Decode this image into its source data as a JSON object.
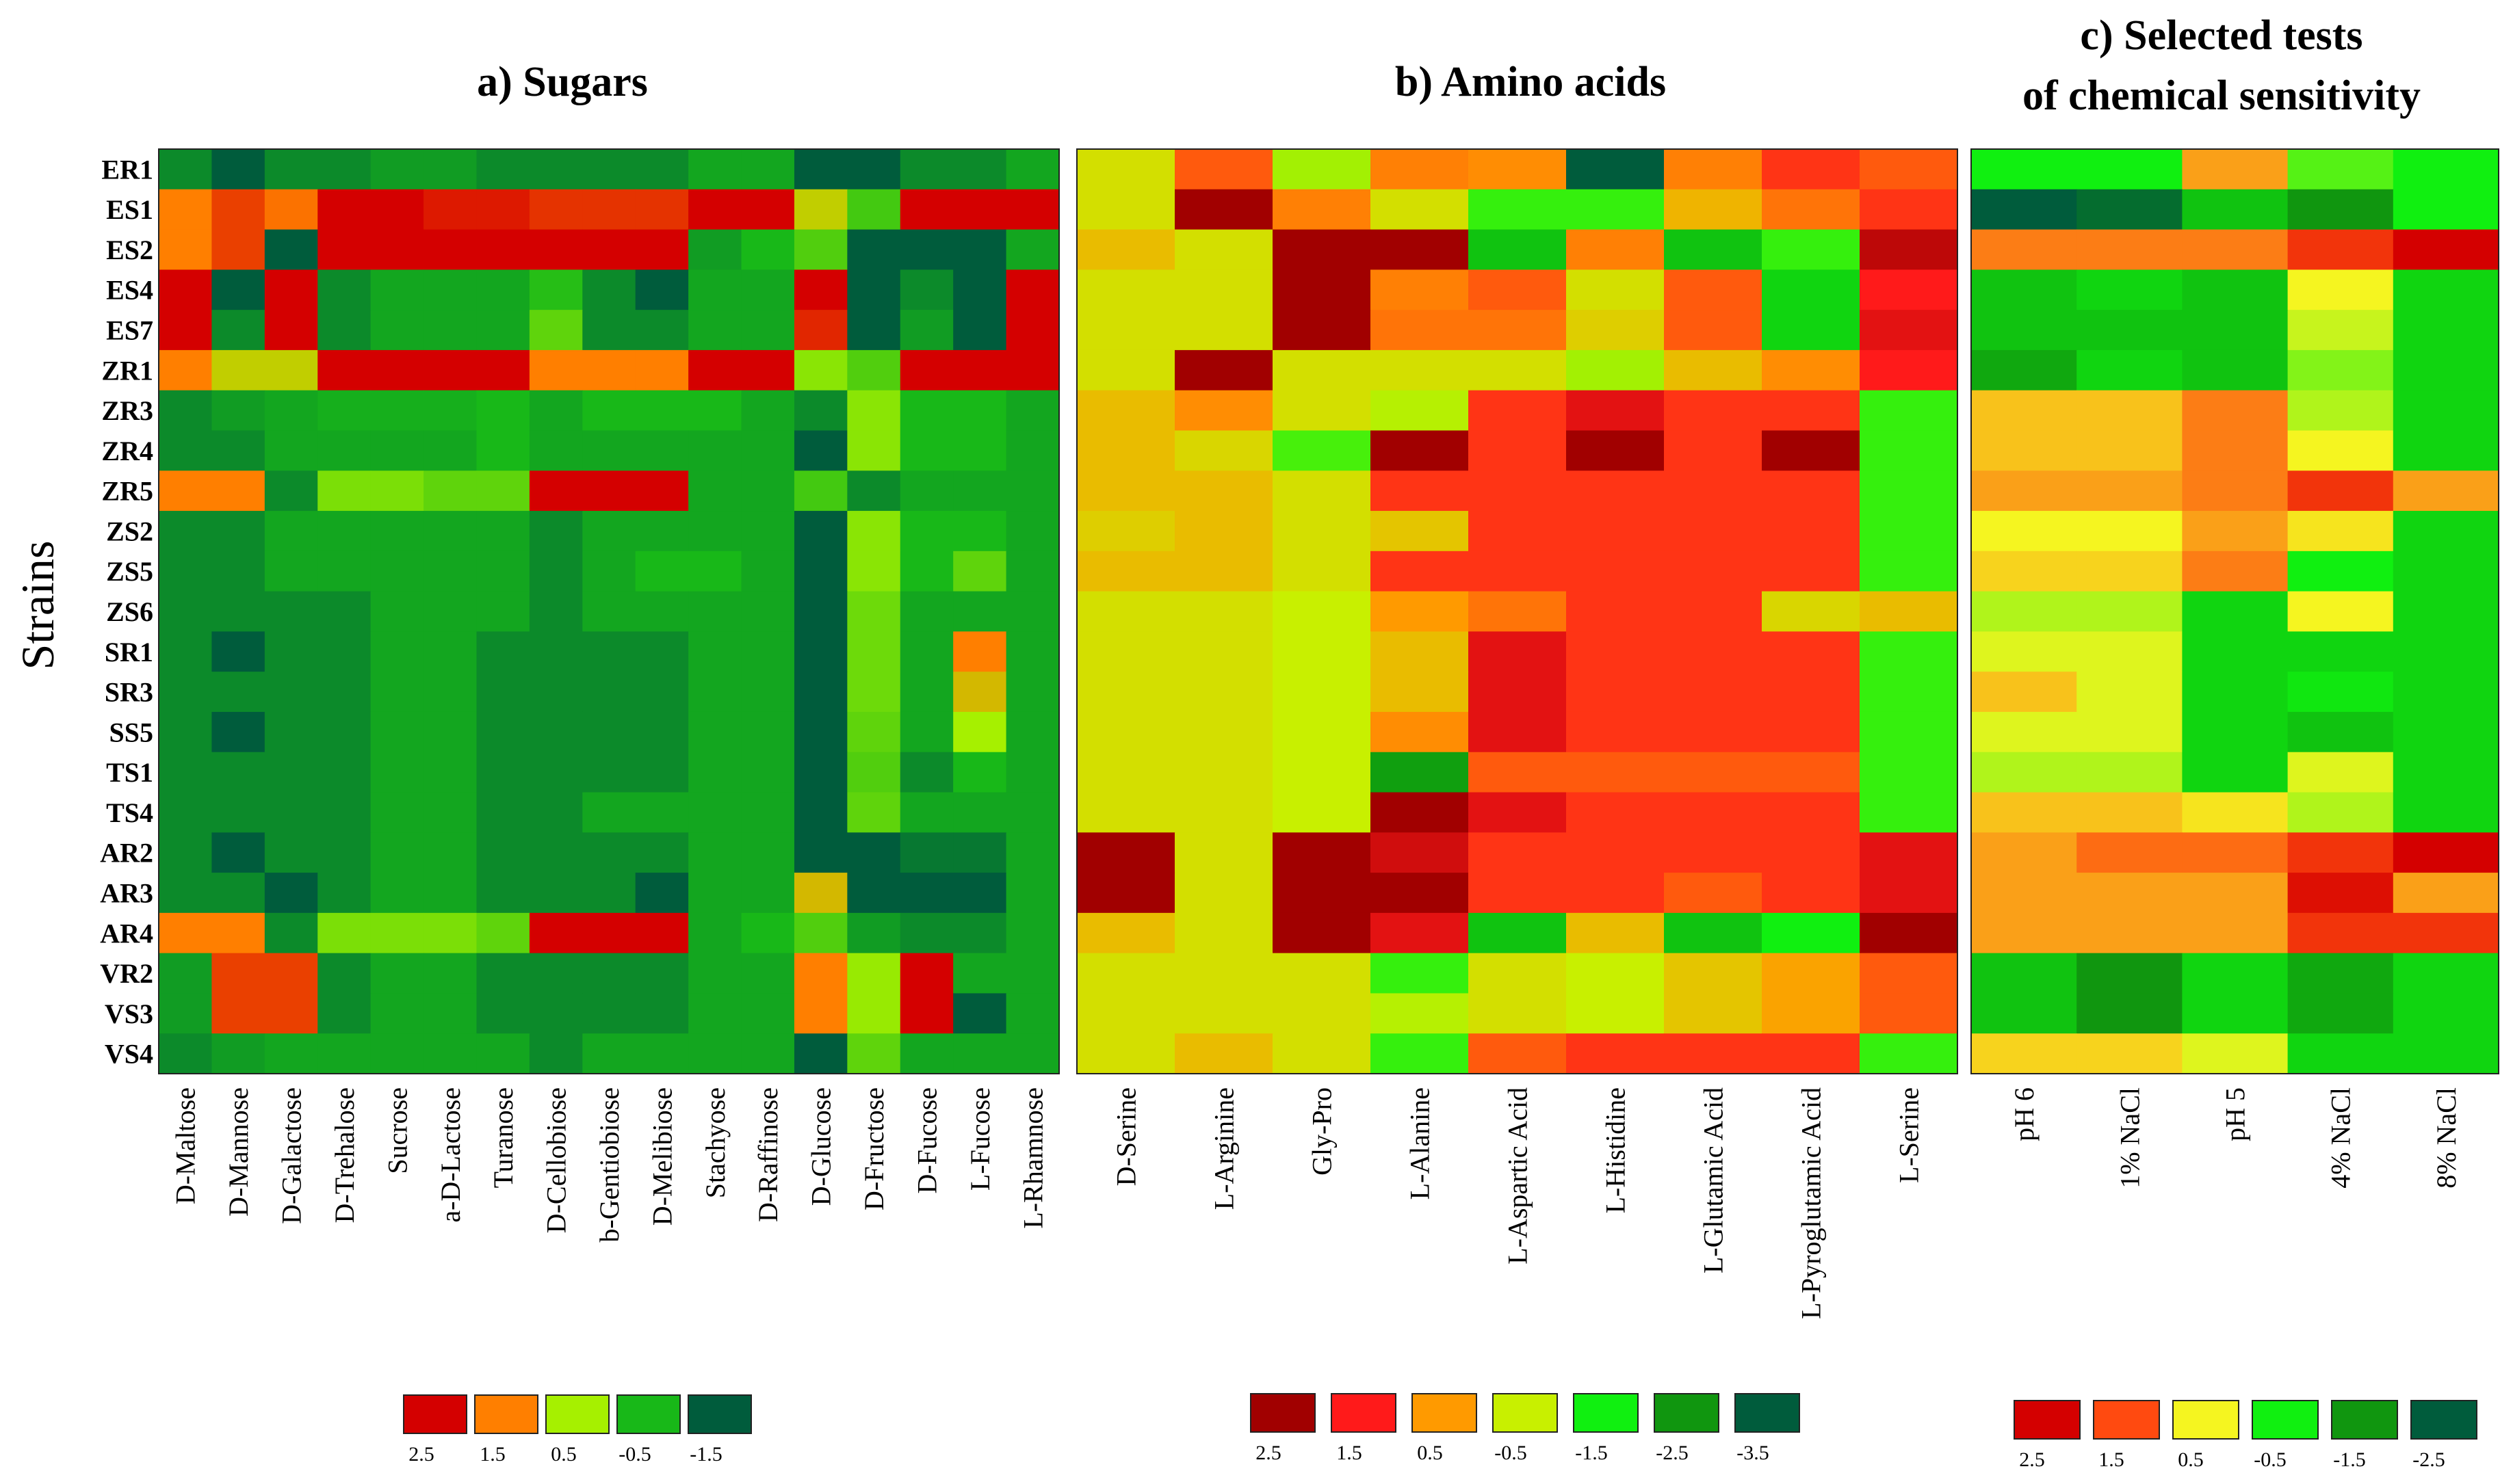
{
  "chart_data": {
    "type": "heatmap",
    "ylabel": "Strains",
    "strains": [
      "ER1",
      "ES1",
      "ES2",
      "ES4",
      "ES7",
      "ZR1",
      "ZR3",
      "ZR4",
      "ZR5",
      "ZS2",
      "ZS5",
      "ZS6",
      "SR1",
      "SR3",
      "SS5",
      "TS1",
      "TS4",
      "AR2",
      "AR3",
      "AR4",
      "VR2",
      "VS3",
      "VS4"
    ],
    "panels": [
      {
        "title_lines": [
          "a)   Sugars"
        ],
        "columns": [
          "D-Maltose",
          "D-Mannose",
          "D-Galactose",
          "D-Trehalose",
          "Sucrose",
          "a-D-Lactose",
          "Turanose",
          "D-Cellobiose",
          "b-Gentiobiose",
          "D-Melibiose",
          "Stachyose",
          "D-Raffinose",
          "D-Glucose",
          "D-Fructose",
          "D-Fucose",
          "L-Fucose",
          "L-Rhamnose"
        ],
        "legend": {
          "labels": [
            "2.5",
            "1.5",
            "0.5",
            "-0.5",
            "-1.5"
          ],
          "colors": [
            "#d40000",
            "#ff7f00",
            "#a6f000",
            "#18b818",
            "#005c3c"
          ]
        },
        "values": [
          [
            -1.0,
            -1.6,
            -1.0,
            -1.0,
            -0.8,
            -0.8,
            -1.0,
            -1.0,
            -1.0,
            -1.0,
            -0.7,
            -0.7,
            -1.6,
            -3.5,
            -1.0,
            -1.0,
            -0.7
          ],
          [
            1.5,
            2.0,
            1.6,
            2.7,
            2.7,
            2.3,
            2.3,
            2.1,
            2.1,
            2.1,
            3.2,
            3.2,
            0.8,
            -0.2,
            2.5,
            2.5,
            2.5
          ],
          [
            1.5,
            2.0,
            -1.5,
            3.0,
            3.2,
            3.2,
            3.2,
            2.5,
            2.5,
            2.5,
            -0.8,
            -0.5,
            -0.1,
            -3.0,
            -2.0,
            -2.0,
            -0.7
          ],
          [
            2.5,
            -1.5,
            2.5,
            -1.0,
            -0.7,
            -0.7,
            -0.7,
            -0.4,
            -1.0,
            -1.5,
            -0.7,
            -0.7,
            2.5,
            -3.5,
            -1.0,
            -3.0,
            2.8
          ],
          [
            2.5,
            -1.0,
            2.5,
            -1.0,
            -0.7,
            -0.7,
            -0.7,
            0.0,
            -1.0,
            -1.0,
            -0.7,
            -0.7,
            2.2,
            -3.5,
            -0.8,
            -2.0,
            2.8
          ],
          [
            1.5,
            0.8,
            0.8,
            2.5,
            2.5,
            2.7,
            2.5,
            1.5,
            1.5,
            1.5,
            3.2,
            3.2,
            0.3,
            -0.1,
            2.5,
            3.0,
            2.5
          ],
          [
            -1.0,
            -0.8,
            -0.7,
            -0.6,
            -0.6,
            -0.6,
            -0.5,
            -0.7,
            -0.5,
            -0.5,
            -0.5,
            -0.7,
            -1.0,
            0.3,
            -0.5,
            -0.5,
            -0.7
          ],
          [
            -1.0,
            -1.0,
            -0.7,
            -0.7,
            -0.7,
            -0.7,
            -0.5,
            -0.7,
            -0.7,
            -0.7,
            -0.7,
            -0.7,
            -1.5,
            0.3,
            -0.5,
            -0.5,
            -0.7
          ],
          [
            1.5,
            1.5,
            -1.0,
            0.2,
            0.2,
            0.0,
            0.0,
            2.5,
            2.5,
            2.5,
            -0.7,
            -0.7,
            -0.2,
            -1.0,
            -0.7,
            -0.7,
            -0.7
          ],
          [
            -1.0,
            -1.0,
            -0.7,
            -0.7,
            -0.7,
            -0.7,
            -0.7,
            -1.0,
            -0.7,
            -0.7,
            -0.7,
            -0.7,
            -1.5,
            0.3,
            -0.5,
            -0.5,
            -0.7
          ],
          [
            -1.0,
            -1.0,
            -0.7,
            -0.7,
            -0.7,
            -0.7,
            -0.7,
            -1.0,
            -0.7,
            -0.5,
            -0.5,
            -0.7,
            -1.5,
            0.3,
            -0.5,
            0.0,
            -0.7
          ],
          [
            -1.0,
            -1.0,
            -1.0,
            -1.0,
            -0.7,
            -0.7,
            -0.7,
            -1.0,
            -0.7,
            -0.7,
            -0.7,
            -0.7,
            -1.5,
            0.1,
            -0.7,
            -0.7,
            -0.7
          ],
          [
            -1.0,
            -1.5,
            -1.0,
            -1.0,
            -0.7,
            -0.7,
            -1.0,
            -1.0,
            -1.0,
            -1.0,
            -0.7,
            -0.7,
            -1.5,
            0.1,
            -0.7,
            1.5,
            -0.7
          ],
          [
            -1.0,
            -1.0,
            -1.0,
            -1.0,
            -0.7,
            -0.7,
            -1.0,
            -1.0,
            -1.0,
            -1.0,
            -0.7,
            -0.7,
            -1.5,
            0.1,
            -0.7,
            1.0,
            -0.7
          ],
          [
            -1.0,
            -1.5,
            -1.0,
            -1.0,
            -0.7,
            -0.7,
            -1.0,
            -1.0,
            -1.0,
            -1.0,
            -0.7,
            -0.7,
            -1.5,
            0.0,
            -0.7,
            0.5,
            -0.7
          ],
          [
            -1.0,
            -1.0,
            -1.0,
            -1.0,
            -0.7,
            -0.7,
            -1.0,
            -1.0,
            -1.0,
            -1.0,
            -0.7,
            -0.7,
            -1.5,
            -0.1,
            -1.0,
            -0.5,
            -0.7
          ],
          [
            -1.0,
            -1.0,
            -1.0,
            -1.0,
            -0.7,
            -0.7,
            -1.0,
            -1.0,
            -0.7,
            -0.7,
            -0.7,
            -0.7,
            -1.5,
            0.0,
            -0.7,
            -0.7,
            -0.7
          ],
          [
            -1.0,
            -1.5,
            -1.0,
            -1.0,
            -0.7,
            -0.7,
            -1.0,
            -1.0,
            -1.0,
            -1.0,
            -0.7,
            -0.7,
            -1.5,
            -3.5,
            -1.2,
            -1.2,
            -0.7
          ],
          [
            -1.0,
            -1.0,
            -1.5,
            -1.0,
            -0.7,
            -0.7,
            -1.0,
            -1.0,
            -1.0,
            -1.5,
            -0.7,
            -0.7,
            1.0,
            -3.5,
            -1.5,
            -1.5,
            -0.7
          ],
          [
            1.5,
            1.5,
            -1.0,
            0.2,
            0.2,
            0.2,
            0.0,
            2.5,
            2.5,
            2.5,
            -0.7,
            -0.5,
            -0.1,
            -0.8,
            -1.0,
            -1.0,
            -0.7
          ],
          [
            -0.8,
            2.0,
            2.0,
            -1.0,
            -0.7,
            -0.7,
            -1.0,
            -1.0,
            -1.0,
            -1.0,
            -0.7,
            -0.7,
            1.5,
            0.4,
            2.5,
            -0.7,
            -0.7
          ],
          [
            -0.8,
            2.0,
            2.0,
            -1.0,
            -0.7,
            -0.7,
            -1.0,
            -1.0,
            -1.0,
            -1.0,
            -0.7,
            -0.7,
            1.5,
            0.4,
            2.5,
            -1.5,
            -0.7
          ],
          [
            -1.0,
            -0.8,
            -0.7,
            -0.7,
            -0.7,
            -0.7,
            -0.7,
            -1.0,
            -0.7,
            -0.7,
            -0.7,
            -0.7,
            -1.8,
            0.0,
            -0.7,
            -0.7,
            -0.7
          ]
        ]
      },
      {
        "title_lines": [
          "b)   Amino acids"
        ],
        "columns": [
          "D-Serine",
          "L-Arginine",
          "Gly-Pro",
          "L-Alanine",
          "L-Aspartic Acid",
          "L-Histidine",
          "L-Glutamic Acid",
          "L-Pyroglutamic Acid",
          "L-Serine"
        ],
        "legend": {
          "labels": [
            "2.5",
            "1.5",
            "0.5",
            "-0.5",
            "-1.5",
            "-2.5",
            "-3.5"
          ],
          "colors": [
            "#a10000",
            "#ff1a1a",
            "#ff9a00",
            "#c8f000",
            "#10f010",
            "#10960f",
            "#005c3c"
          ]
        },
        "values": [
          [
            -0.3,
            1.0,
            -0.7,
            0.7,
            0.6,
            -3.5,
            0.7,
            1.3,
            1.0
          ],
          [
            -0.3,
            2.9,
            0.7,
            -0.3,
            -1.3,
            -1.3,
            0.2,
            0.8,
            1.3
          ],
          [
            0.1,
            -0.3,
            2.5,
            2.5,
            -2.0,
            0.7,
            -2.0,
            -1.3,
            2.2
          ],
          [
            -0.3,
            -0.3,
            2.5,
            0.7,
            1.0,
            -0.3,
            1.0,
            -1.8,
            1.5
          ],
          [
            -0.3,
            -0.3,
            2.5,
            0.8,
            0.8,
            -0.1,
            1.0,
            -1.8,
            1.8
          ],
          [
            -0.3,
            3.0,
            -0.3,
            -0.3,
            -0.3,
            -0.7,
            0.1,
            0.6,
            1.5
          ],
          [
            0.1,
            0.6,
            -0.3,
            -0.6,
            1.3,
            1.8,
            1.3,
            1.3,
            -1.3
          ],
          [
            0.1,
            -0.2,
            -1.2,
            2.5,
            1.3,
            2.5,
            1.3,
            2.5,
            -1.3
          ],
          [
            0.1,
            0.1,
            -0.3,
            1.3,
            1.3,
            1.3,
            1.3,
            1.3,
            -1.3
          ],
          [
            -0.1,
            0.1,
            -0.3,
            0.0,
            1.3,
            1.3,
            1.3,
            1.3,
            -1.3
          ],
          [
            0.1,
            0.1,
            -0.3,
            1.3,
            1.3,
            1.3,
            1.3,
            1.3,
            -1.3
          ],
          [
            -0.3,
            -0.3,
            -0.5,
            0.5,
            0.8,
            1.3,
            1.3,
            -0.2,
            0.1
          ],
          [
            -0.3,
            -0.3,
            -0.5,
            0.1,
            1.8,
            1.3,
            1.3,
            1.3,
            -1.3
          ],
          [
            -0.3,
            -0.3,
            -0.5,
            0.1,
            1.8,
            1.3,
            1.3,
            1.3,
            -1.3
          ],
          [
            -0.3,
            -0.3,
            -0.5,
            0.6,
            1.8,
            1.3,
            1.3,
            1.3,
            -1.3
          ],
          [
            -0.3,
            -0.3,
            -0.5,
            -2.4,
            1.0,
            1.0,
            1.0,
            1.0,
            -1.3
          ],
          [
            -0.3,
            -0.3,
            -0.5,
            2.5,
            1.8,
            1.3,
            1.3,
            1.3,
            -1.3
          ],
          [
            2.9,
            -0.3,
            2.5,
            2.0,
            1.3,
            1.3,
            1.3,
            1.3,
            1.8
          ],
          [
            2.9,
            -0.3,
            2.5,
            2.5,
            1.3,
            1.3,
            1.0,
            1.3,
            1.8
          ],
          [
            0.1,
            -0.3,
            2.5,
            1.8,
            -2.0,
            0.1,
            -2.0,
            -1.5,
            2.5
          ],
          [
            -0.3,
            -0.3,
            -0.3,
            -1.3,
            -0.3,
            -0.5,
            0.0,
            0.4,
            1.0
          ],
          [
            -0.3,
            -0.3,
            -0.3,
            -0.6,
            -0.3,
            -0.5,
            0.0,
            0.4,
            1.0
          ],
          [
            -0.3,
            0.1,
            -0.3,
            -1.3,
            1.0,
            1.3,
            1.3,
            1.3,
            -1.3
          ]
        ]
      },
      {
        "title_lines": [
          "c)   Selected tests",
          "of chemical sensitivity"
        ],
        "columns": [
          "pH 6",
          "1% NaCl",
          "pH 5",
          "4% NaCl",
          "8% NaCl"
        ],
        "legend": {
          "labels": [
            "2.5",
            "1.5",
            "0.5",
            "-0.5",
            "-1.5",
            "-2.5"
          ],
          "colors": [
            "#d40000",
            "#ff4a10",
            "#f5f520",
            "#10f010",
            "#10960f",
            "#005c3c"
          ]
        },
        "values": [
          [
            -0.5,
            -0.5,
            1.0,
            -0.2,
            -0.5
          ],
          [
            -2.5,
            -2.2,
            -1.0,
            -1.5,
            -0.5
          ],
          [
            1.2,
            1.2,
            1.2,
            1.8,
            2.5
          ],
          [
            -1.0,
            -0.8,
            -1.0,
            0.5,
            -0.8
          ],
          [
            -1.0,
            -1.0,
            -1.0,
            0.3,
            -0.8
          ],
          [
            -1.3,
            -0.8,
            -1.0,
            0.0,
            -0.8
          ],
          [
            0.8,
            0.8,
            1.2,
            0.2,
            -0.8
          ],
          [
            0.8,
            0.8,
            1.2,
            0.5,
            -0.8
          ],
          [
            1.0,
            1.0,
            1.2,
            1.8,
            1.0
          ],
          [
            0.5,
            0.5,
            1.0,
            0.6,
            -0.8
          ],
          [
            0.7,
            0.7,
            1.2,
            -0.5,
            -0.8
          ],
          [
            0.2,
            0.2,
            -0.8,
            0.5,
            -0.8
          ],
          [
            0.4,
            0.4,
            -0.8,
            -0.8,
            -0.8
          ],
          [
            0.8,
            0.4,
            -0.8,
            -0.6,
            -0.8
          ],
          [
            0.4,
            0.4,
            -0.8,
            -1.0,
            -0.8
          ],
          [
            0.2,
            0.2,
            -0.8,
            0.4,
            -0.8
          ],
          [
            0.8,
            0.8,
            0.6,
            0.2,
            -0.8
          ],
          [
            1.0,
            1.3,
            1.3,
            1.8,
            3.0
          ],
          [
            1.0,
            1.0,
            1.0,
            2.3,
            1.0
          ],
          [
            1.0,
            1.0,
            1.0,
            1.8,
            1.8
          ],
          [
            -1.0,
            -1.5,
            -0.8,
            -1.3,
            -0.8
          ],
          [
            -1.0,
            -1.5,
            -0.8,
            -1.3,
            -0.8
          ],
          [
            0.7,
            0.7,
            0.4,
            -0.8,
            -0.8
          ]
        ]
      }
    ]
  }
}
